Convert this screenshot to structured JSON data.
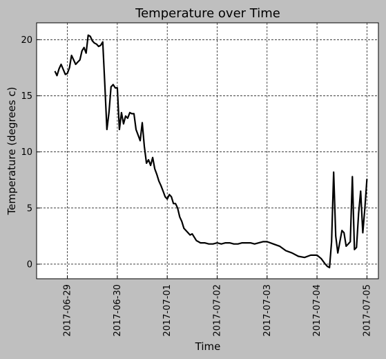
{
  "chart_data": {
    "type": "line",
    "title": "Temperature over Time",
    "xlabel": "Time",
    "ylabel": "Temperature (degrees c)",
    "xlim": [
      "2017-06-28 09:12",
      "2017-07-05 05:31"
    ],
    "ylim": [
      -1.3,
      21.5
    ],
    "x_ticks": [
      "2017-06-29",
      "2017-06-30",
      "2017-07-01",
      "2017-07-02",
      "2017-07-03",
      "2017-07-04",
      "2017-07-05"
    ],
    "y_ticks": [
      0,
      5,
      10,
      15,
      20
    ],
    "grid": true,
    "series": [
      {
        "color": "#000000",
        "x": [
          "2017-06-28 18:00",
          "2017-06-28 19:00",
          "2017-06-28 20:00",
          "2017-06-28 21:00",
          "2017-06-28 23:00",
          "2017-06-29 00:00",
          "2017-06-29 01:00",
          "2017-06-29 02:00",
          "2017-06-29 04:00",
          "2017-06-29 05:00",
          "2017-06-29 06:00",
          "2017-06-29 07:00",
          "2017-06-29 08:00",
          "2017-06-29 09:00",
          "2017-06-29 10:00",
          "2017-06-29 11:00",
          "2017-06-29 12:00",
          "2017-06-29 13:00",
          "2017-06-29 14:00",
          "2017-06-29 15:00",
          "2017-06-29 16:00",
          "2017-06-29 17:00",
          "2017-06-29 18:00",
          "2017-06-29 19:00",
          "2017-06-29 20:00",
          "2017-06-29 21:00",
          "2017-06-29 22:00",
          "2017-06-29 23:00",
          "2017-06-30 00:00",
          "2017-06-30 01:00",
          "2017-06-30 02:00",
          "2017-06-30 03:00",
          "2017-06-30 04:00",
          "2017-06-30 05:00",
          "2017-06-30 06:00",
          "2017-06-30 07:00",
          "2017-06-30 08:00",
          "2017-06-30 09:00",
          "2017-06-30 10:00",
          "2017-06-30 11:00",
          "2017-06-30 12:00",
          "2017-06-30 13:00",
          "2017-06-30 14:00",
          "2017-06-30 15:00",
          "2017-06-30 16:00",
          "2017-06-30 17:00",
          "2017-06-30 18:00",
          "2017-06-30 19:00",
          "2017-06-30 20:00",
          "2017-06-30 21:00",
          "2017-06-30 22:00",
          "2017-06-30 23:00",
          "2017-07-01 00:00",
          "2017-07-01 01:00",
          "2017-07-01 02:00",
          "2017-07-01 03:00",
          "2017-07-01 04:00",
          "2017-07-01 05:00",
          "2017-07-01 06:00",
          "2017-07-01 07:00",
          "2017-07-01 08:00",
          "2017-07-01 09:00",
          "2017-07-01 10:00",
          "2017-07-01 11:00",
          "2017-07-01 12:00",
          "2017-07-01 14:00",
          "2017-07-01 16:00",
          "2017-07-01 18:00",
          "2017-07-01 20:00",
          "2017-07-01 22:00",
          "2017-07-02 00:00",
          "2017-07-02 02:00",
          "2017-07-02 04:00",
          "2017-07-02 06:00",
          "2017-07-02 08:00",
          "2017-07-02 10:00",
          "2017-07-02 12:00",
          "2017-07-02 14:00",
          "2017-07-02 16:00",
          "2017-07-02 18:00",
          "2017-07-02 20:00",
          "2017-07-02 22:00",
          "2017-07-03 00:00",
          "2017-07-03 03:00",
          "2017-07-03 06:00",
          "2017-07-03 09:00",
          "2017-07-03 12:00",
          "2017-07-03 15:00",
          "2017-07-03 18:00",
          "2017-07-03 21:00",
          "2017-07-04 00:00",
          "2017-07-04 02:00",
          "2017-07-04 04:00",
          "2017-07-04 05:00",
          "2017-07-04 06:00",
          "2017-07-04 07:00",
          "2017-07-04 08:00",
          "2017-07-04 09:00",
          "2017-07-04 10:00",
          "2017-07-04 11:00",
          "2017-07-04 12:00",
          "2017-07-04 13:00",
          "2017-07-04 14:00",
          "2017-07-04 15:00",
          "2017-07-04 16:00",
          "2017-07-04 17:00",
          "2017-07-04 18:00",
          "2017-07-04 19:00",
          "2017-07-04 20:00",
          "2017-07-04 21:00",
          "2017-07-04 22:00",
          "2017-07-04 23:00",
          "2017-07-05 00:00"
        ],
        "y": [
          17.2,
          16.8,
          17.4,
          17.8,
          16.9,
          17.0,
          17.5,
          18.6,
          17.8,
          18.0,
          18.2,
          19.0,
          19.3,
          18.8,
          20.4,
          20.3,
          19.9,
          19.7,
          19.6,
          19.4,
          19.5,
          19.8,
          16.0,
          12.0,
          13.5,
          15.8,
          16.0,
          15.7,
          15.7,
          12.0,
          13.5,
          12.5,
          13.2,
          13.0,
          13.5,
          13.4,
          13.4,
          12.0,
          11.5,
          11.0,
          12.6,
          10.5,
          9.0,
          9.3,
          8.8,
          9.5,
          8.5,
          8.0,
          7.4,
          7.0,
          6.5,
          6.0,
          5.8,
          6.2,
          6.0,
          5.4,
          5.4,
          5.0,
          4.2,
          3.8,
          3.2,
          3.0,
          2.8,
          2.6,
          2.7,
          2.1,
          1.9,
          1.9,
          1.8,
          1.8,
          1.9,
          1.8,
          1.9,
          1.9,
          1.8,
          1.8,
          1.9,
          1.9,
          1.9,
          1.8,
          1.9,
          2.0,
          2.0,
          1.8,
          1.6,
          1.2,
          1.0,
          0.7,
          0.6,
          0.8,
          0.8,
          0.5,
          0.0,
          -0.2,
          -0.3,
          2.0,
          8.2,
          2.5,
          1.0,
          2.0,
          3.0,
          2.8,
          1.6,
          1.8,
          2.0,
          7.8,
          1.3,
          1.5,
          4.5,
          6.5,
          2.8,
          5.0,
          7.6
        ]
      }
    ]
  }
}
